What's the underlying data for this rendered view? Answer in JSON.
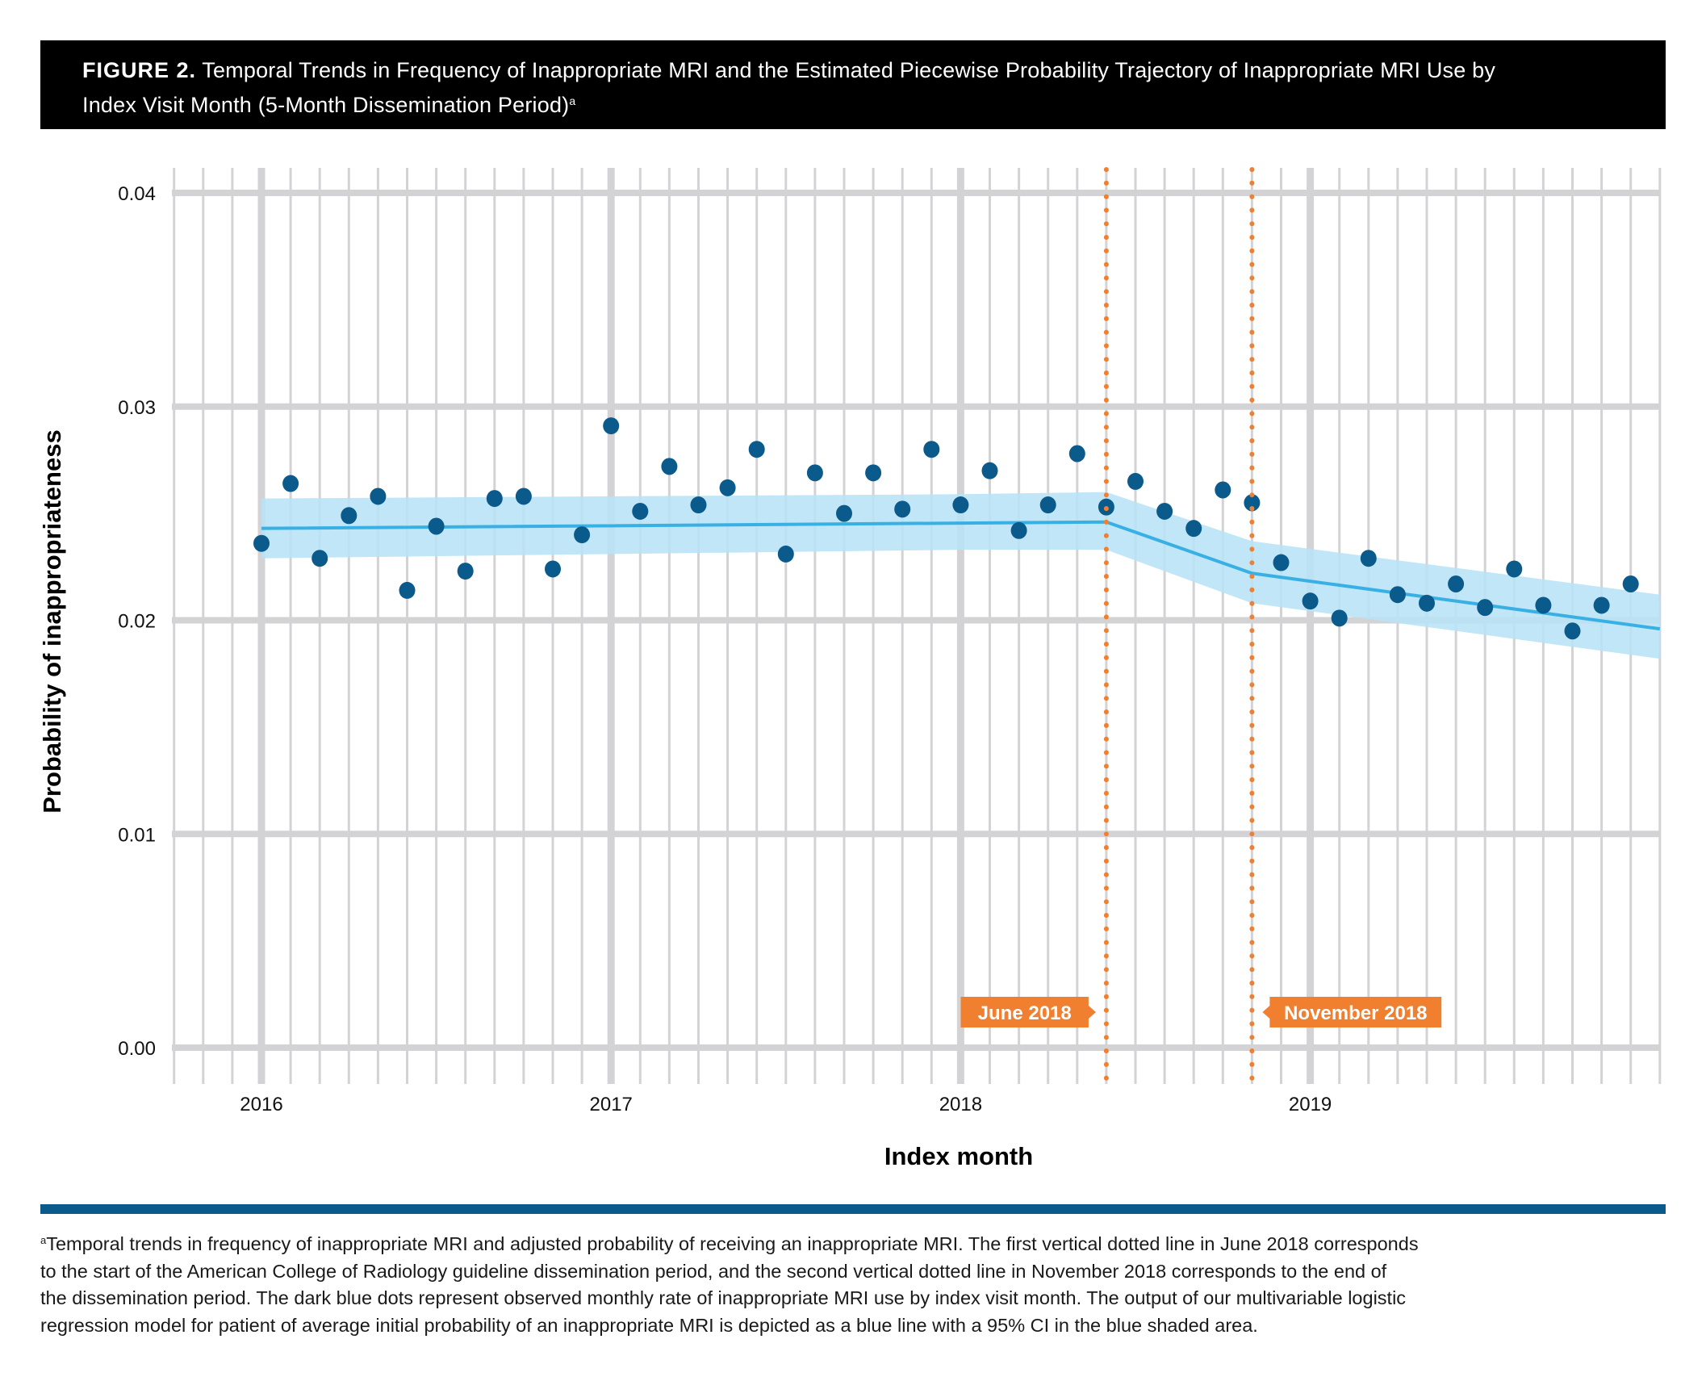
{
  "figure": {
    "label": "FIGURE 2.",
    "title_line1": " Temporal Trends in Frequency of Inappropriate MRI and the Estimated Piecewise Probability Trajectory of Inappropriate MRI Use by",
    "title_line2": "Index Visit Month (5-Month Dissemination Period)",
    "title_superscript": "a"
  },
  "footnote": {
    "marker": "a",
    "lines": [
      "Temporal trends in frequency of inappropriate MRI and adjusted probability of receiving an inappropriate MRI. The first vertical dotted line in June 2018 corresponds",
      "to the start of the American College of Radiology guideline dissemination period, and the second vertical dotted line in November 2018 corresponds to the end of",
      "the dissemination period. The dark blue dots represent observed monthly rate of inappropriate MRI use by index visit month. The output of our multivariable logistic",
      "regression model for patient of average initial probability of an inappropriate MRI is depicted as a blue line with a 95% CI in the blue shaded area."
    ]
  },
  "colors": {
    "dots": "#0b5a8c",
    "fit_line": "#39b0e4",
    "ci_band": "#b7e3f6",
    "annotation": "#f08030",
    "grid": "#d3d3d5",
    "rule": "#0b5a8c"
  },
  "chart_data": {
    "type": "scatter",
    "title": "Temporal Trends in Frequency of Inappropriate MRI and the Estimated Piecewise Probability Trajectory of Inappropriate MRI Use by Index Visit Month (5-Month Dissemination Period)",
    "xlabel": "Index month",
    "ylabel": "Probability of inappropriateness",
    "ylim": [
      0,
      0.04
    ],
    "yticks": [
      "0.00",
      "0.01",
      "0.02",
      "0.03",
      "0.04"
    ],
    "ytick_values": [
      0,
      0.01,
      0.02,
      0.03,
      0.04
    ],
    "xlim_months_from_jan2016": [
      -3.1,
      48
    ],
    "xticks": [
      "2016",
      "2017",
      "2018",
      "2019"
    ],
    "xtick_months_from_jan2016": [
      0,
      12,
      24,
      36
    ],
    "grid": true,
    "legend": "none",
    "series": [
      {
        "name": "Observed monthly rate",
        "kind": "points",
        "x_months_from_jan2016": [
          0,
          1,
          2,
          3,
          4,
          5,
          6,
          7,
          8,
          9,
          10,
          11,
          12,
          13,
          14,
          15,
          16,
          17,
          18,
          19,
          20,
          21,
          22,
          23,
          24,
          25,
          26,
          27,
          28,
          29,
          30,
          31,
          32,
          33,
          34,
          35,
          36,
          37,
          38,
          39,
          40,
          41,
          42,
          43,
          44,
          45,
          46,
          47
        ],
        "labels": [
          "2016-01",
          "2016-02",
          "2016-03",
          "2016-04",
          "2016-05",
          "2016-06",
          "2016-07",
          "2016-08",
          "2016-09",
          "2016-10",
          "2016-11",
          "2016-12",
          "2017-01",
          "2017-02",
          "2017-03",
          "2017-04",
          "2017-05",
          "2017-06",
          "2017-07",
          "2017-08",
          "2017-09",
          "2017-10",
          "2017-11",
          "2017-12",
          "2018-01",
          "2018-02",
          "2018-03",
          "2018-04",
          "2018-05",
          "2018-06",
          "2018-07",
          "2018-08",
          "2018-09",
          "2018-10",
          "2018-11",
          "2018-12",
          "2019-01",
          "2019-02",
          "2019-03",
          "2019-04",
          "2019-05",
          "2019-06",
          "2019-07",
          "2019-08",
          "2019-09",
          "2019-10",
          "2019-11",
          "2019-12"
        ],
        "values": [
          0.0236,
          0.0264,
          0.0229,
          0.0249,
          0.0258,
          0.0214,
          0.0244,
          0.0223,
          0.0257,
          0.0258,
          0.0224,
          0.024,
          0.0291,
          0.0251,
          0.0272,
          0.0254,
          0.0262,
          0.028,
          0.0231,
          0.0269,
          0.025,
          0.0269,
          0.0252,
          0.028,
          0.0254,
          0.027,
          0.0242,
          0.0254,
          0.0278,
          0.0253,
          0.0265,
          0.0251,
          0.0243,
          0.0261,
          0.0255,
          0.0227,
          0.0209,
          0.0201,
          0.0229,
          0.0212,
          0.0208,
          0.0217,
          0.0206,
          0.0224,
          0.0207,
          0.0195,
          0.0207,
          0.0217
        ]
      },
      {
        "name": "Estimated piecewise probability (model fit)",
        "kind": "line",
        "x_months_from_jan2016": [
          0,
          29,
          34,
          48
        ],
        "values": [
          0.0243,
          0.0246,
          0.0222,
          0.0196
        ]
      },
      {
        "name": "95% CI",
        "kind": "band",
        "x_months_from_jan2016": [
          0,
          24,
          29,
          34,
          48
        ],
        "lower": [
          0.0229,
          0.0233,
          0.0233,
          0.0208,
          0.0182
        ],
        "upper": [
          0.0257,
          0.0259,
          0.026,
          0.0237,
          0.0212
        ]
      }
    ],
    "annotations": [
      {
        "label": "June 2018",
        "x_months_from_jan2016": 29,
        "style": "dotted-vertical",
        "label_side": "left"
      },
      {
        "label": "November 2018",
        "x_months_from_jan2016": 34,
        "style": "dotted-vertical",
        "label_side": "right"
      }
    ]
  }
}
